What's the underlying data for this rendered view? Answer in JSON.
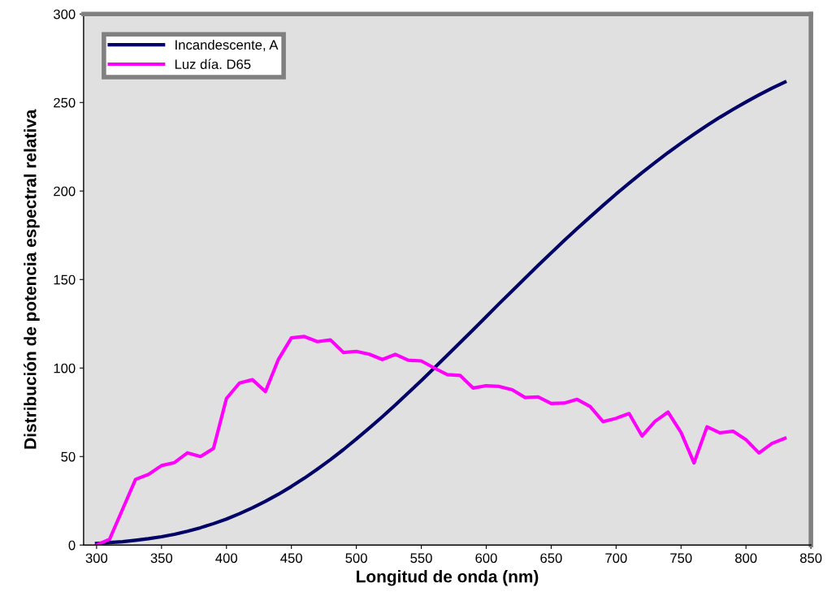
{
  "chart_data": {
    "type": "line",
    "xlabel": "Longitud de onda (nm)",
    "ylabel": "Distribución de potencia espectral relativa",
    "x": [
      300,
      310,
      320,
      330,
      340,
      350,
      360,
      370,
      380,
      390,
      400,
      410,
      420,
      430,
      440,
      450,
      460,
      470,
      480,
      490,
      500,
      510,
      520,
      530,
      540,
      550,
      560,
      570,
      580,
      590,
      600,
      610,
      620,
      630,
      640,
      650,
      660,
      670,
      680,
      690,
      700,
      710,
      720,
      730,
      740,
      750,
      760,
      770,
      780,
      790,
      800,
      810,
      820,
      830
    ],
    "series": [
      {
        "name": "Incandescente, A",
        "color": "#000066",
        "values": [
          0.9,
          1.4,
          1.9,
          2.7,
          3.6,
          4.7,
          6.1,
          7.8,
          9.8,
          12.1,
          14.7,
          17.7,
          21.0,
          24.7,
          28.7,
          33.1,
          37.8,
          42.9,
          48.2,
          53.9,
          59.9,
          66.1,
          72.5,
          79.1,
          86.0,
          92.9,
          100.0,
          107.2,
          114.4,
          121.7,
          129.0,
          136.4,
          143.6,
          150.8,
          158.0,
          165.0,
          172.0,
          178.8,
          185.4,
          191.9,
          198.3,
          204.4,
          210.4,
          216.1,
          221.7,
          227.0,
          232.1,
          237.0,
          241.7,
          246.1,
          250.3,
          254.3,
          258.1,
          261.6
        ]
      },
      {
        "name": "Luz día. D65",
        "color": "#ff00ff",
        "values": [
          0.0,
          3.3,
          20.2,
          37.1,
          39.9,
          44.9,
          46.6,
          52.1,
          50.0,
          54.6,
          82.8,
          91.5,
          93.4,
          86.7,
          104.9,
          117.0,
          117.8,
          114.9,
          115.9,
          108.8,
          109.4,
          107.8,
          104.8,
          107.7,
          104.4,
          104.0,
          100.0,
          96.3,
          95.8,
          88.7,
          90.0,
          89.6,
          87.7,
          83.3,
          83.7,
          80.0,
          80.2,
          82.3,
          78.3,
          69.7,
          71.6,
          74.3,
          61.6,
          69.9,
          75.1,
          63.6,
          46.4,
          66.8,
          63.4,
          64.3,
          59.5,
          52.0,
          57.4,
          60.3
        ]
      }
    ],
    "xlim": [
      290,
      850
    ],
    "xticks": [
      300,
      350,
      400,
      450,
      500,
      550,
      600,
      650,
      700,
      750,
      800,
      850
    ],
    "ylim": [
      0,
      300
    ],
    "yticks": [
      0,
      50,
      100,
      150,
      200,
      250,
      300
    ],
    "grid": false,
    "legend": "top left",
    "marker": "none",
    "line_style": "solid"
  }
}
